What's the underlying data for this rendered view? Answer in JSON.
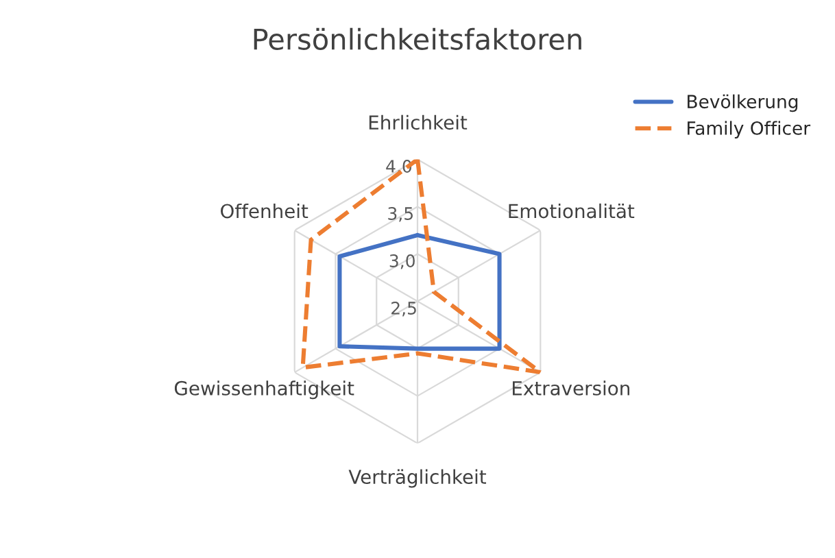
{
  "chart_data": {
    "type": "radar",
    "title": "Persönlichkeitsfaktoren",
    "categories": [
      "Ehrlichkeit",
      "Emotionalität",
      "Extraversion",
      "Verträglichkeit",
      "Gewissenhaftigkeit",
      "Offenheit"
    ],
    "series": [
      {
        "name": "Bevölkerung",
        "color": "#4472c4",
        "line_style": "solid",
        "values": [
          3.2,
          3.5,
          3.5,
          3.0,
          3.45,
          3.45
        ]
      },
      {
        "name": "Family Officer",
        "color": "#ed7d31",
        "line_style": "dashed",
        "values": [
          4.0,
          2.7,
          4.0,
          3.05,
          3.9,
          3.8
        ]
      }
    ],
    "ylim": [
      2.5,
      4.0
    ],
    "yticks": [
      {
        "value": 2.5,
        "label": "2,5"
      },
      {
        "value": 3.0,
        "label": "3,0"
      },
      {
        "value": 3.5,
        "label": "3,5"
      },
      {
        "value": 4.0,
        "label": "4,0"
      }
    ],
    "grid": true,
    "legend": "top right",
    "marker": "none"
  }
}
